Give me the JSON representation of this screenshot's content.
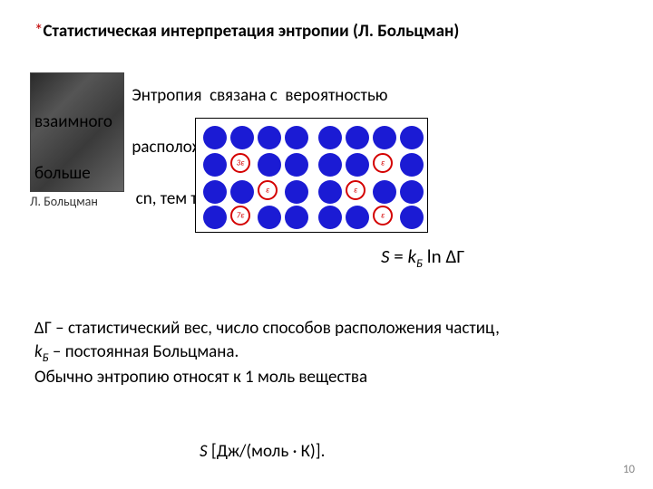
{
  "slide_number": "10",
  "title_ast": "*",
  "title": "Статистическая интерпретация энтропии (Л. Больцман)",
  "photo_caption": "Л. Больцман",
  "text_l1": "                         Энтропия  связана с  вероятностью",
  "text_l1b": "взаимного",
  "text_l2": "                         расположения частиц в системе (чем",
  "text_l2b": "больше",
  "text_l3": "                          сn, тем термодинамее процесс)",
  "formula_S": "S",
  "formula_eq": " = ",
  "formula_k": "k",
  "formula_B": "Б",
  "formula_ln": " ln ",
  "formula_dG": "∆Г",
  "def_l1a": "∆Г – статистический вес, число способов расположения частиц,",
  "def_l2_k": "k",
  "def_l2_B": "Б",
  "def_l2_rest": " –  постоянная Больцмана.",
  "def_l3": "Обычно энтропию относят к 1 моль вещества",
  "units_S": "S",
  "units_rest": " [Дж/(моль · К)].",
  "epsilon": "ε",
  "eps3": "3ε",
  "eps7": "7ε",
  "colors": {
    "blue": "#1b1bd4",
    "red": "#d40000",
    "bg": "#ffffff"
  }
}
